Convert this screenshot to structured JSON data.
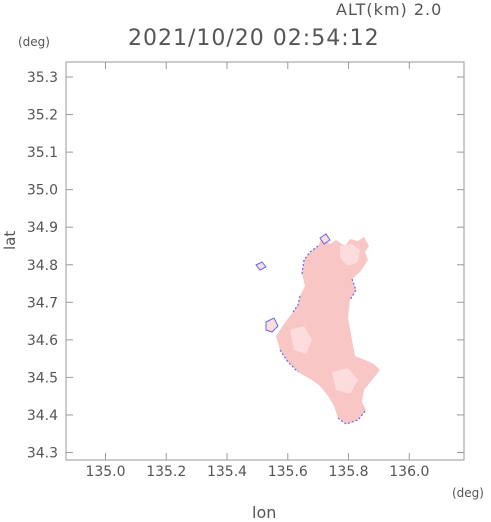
{
  "header": {
    "altitude_label": "ALT(km) 2.0",
    "timestamp": "2021/10/20 02:54:12"
  },
  "axes": {
    "lat_unit": "(deg)",
    "lon_unit": "(deg)",
    "lat_title": "lat",
    "lon_title": "lon",
    "lat_ticks": [
      "34.3",
      "34.4",
      "34.5",
      "34.6",
      "34.7",
      "34.8",
      "34.9",
      "35.0",
      "35.1",
      "35.2",
      "35.3"
    ],
    "lon_ticks": [
      "135.0",
      "135.2",
      "135.4",
      "135.6",
      "135.8",
      "136.0"
    ],
    "lat_range": [
      34.28,
      35.34
    ],
    "lon_range": [
      134.87,
      136.18
    ]
  },
  "map": {
    "echo_color": "#f9c6c6",
    "echo_light_color": "#fcdcdc",
    "edge_color": "#5b6cf0",
    "plot_border_color": "#999999"
  }
}
